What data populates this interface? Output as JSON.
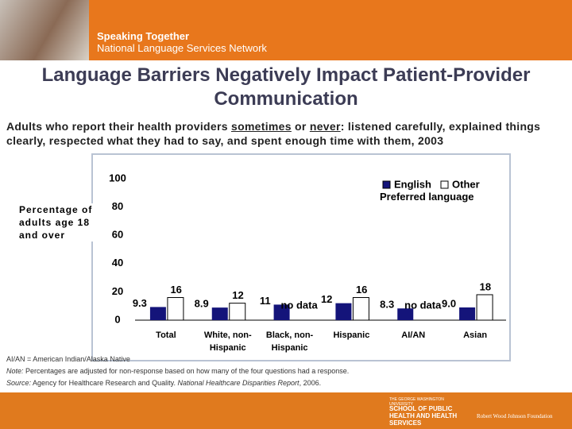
{
  "header": {
    "title": "Speaking Together",
    "subtitle": "National Language Services Network"
  },
  "chart_data": {
    "type": "bar",
    "title": "Language Barriers Negatively Impact Patient-Provider Communication",
    "subtitle_parts": [
      "Adults who report their health providers ",
      "sometimes",
      " or ",
      "never",
      ": listened carefully, explained things clearly, respected what they had to say, and spent enough time with them, 2003"
    ],
    "y_label": "Percentage of adults age 18 and over",
    "categories": [
      "Total",
      "White, non-Hispanic",
      "Black, non-Hispanic",
      "Hispanic",
      "AI/AN",
      "Asian"
    ],
    "legend_title": "Preferred language",
    "series": [
      {
        "name": "English",
        "color": "#14147a",
        "values": [
          9.3,
          8.9,
          11,
          12,
          8.3,
          9.0
        ],
        "value_labels": [
          "9.3",
          "8.9",
          "11",
          "12",
          "8.3",
          "9.0"
        ]
      },
      {
        "name": "Other",
        "color": "#ffffff",
        "values": [
          16,
          12,
          null,
          16,
          null,
          18
        ],
        "value_labels": [
          "16",
          "12",
          "no data",
          "16",
          "no data",
          "18"
        ]
      }
    ],
    "ylim": [
      0,
      100
    ],
    "yticks": [
      0,
      20,
      40,
      60,
      80,
      100
    ],
    "grid": false
  },
  "notes": {
    "abbreviation": "AI/AN = American Indian/Alaska Native",
    "note_label": "Note:",
    "note": "Percentages are adjusted for non-response based on how many of the four questions had a response.",
    "source_label": "Source:",
    "source": "Agency for Healthcare Research and Quality. ",
    "source_title": "National Healthcare Disparities Report",
    "source_end": ", 2006."
  },
  "footer": {
    "university": "THE GEORGE WASHINGTON UNIVERSITY",
    "school": "SCHOOL OF PUBLIC HEALTH AND HEALTH SERVICES",
    "foundation": "Robert Wood Johnson Foundation"
  }
}
